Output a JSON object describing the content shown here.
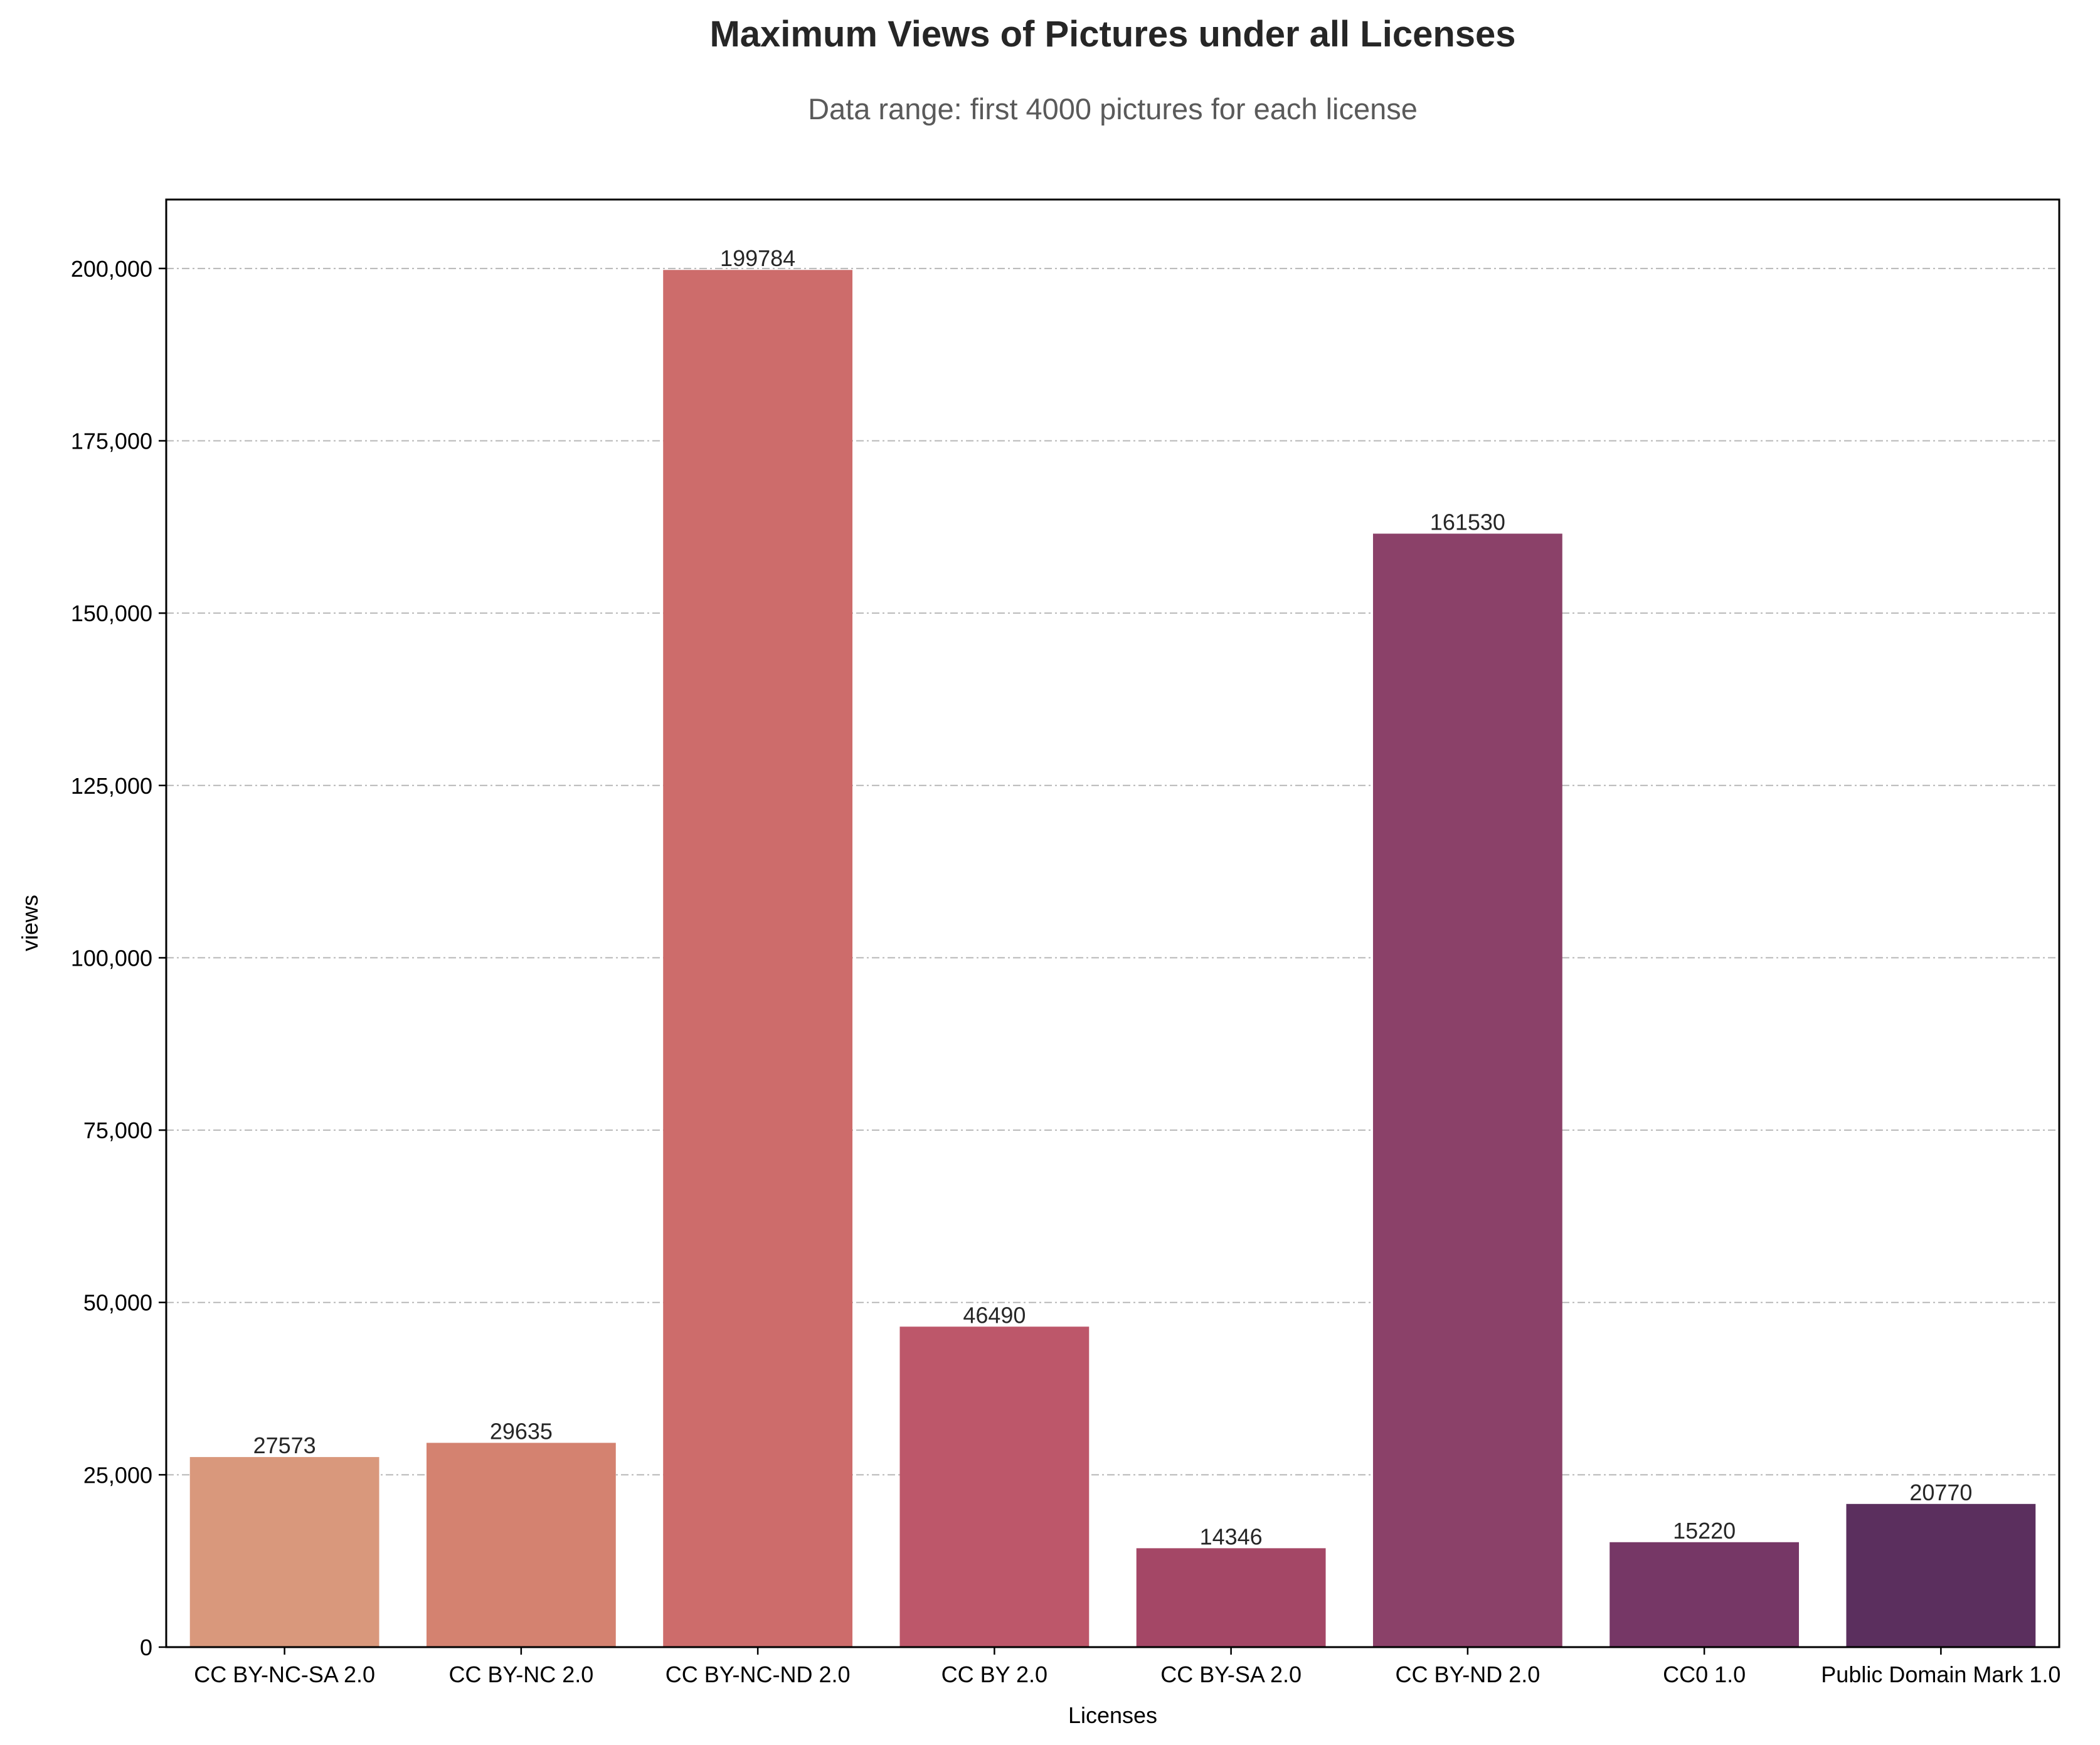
{
  "chart_data": {
    "type": "bar",
    "title": "Maximum Views of Pictures under all Licenses",
    "subtitle": "Data range: first 4000 pictures for each license",
    "xlabel": "Licenses",
    "ylabel": "views",
    "categories": [
      "CC BY-NC-SA 2.0",
      "CC BY-NC 2.0",
      "CC BY-NC-ND 2.0",
      "CC BY 2.0",
      "CC BY-SA 2.0",
      "CC BY-ND 2.0",
      "CC0 1.0",
      "Public Domain Mark 1.0"
    ],
    "values": [
      27573,
      29635,
      199784,
      46490,
      14346,
      161530,
      15220,
      20770
    ],
    "data_labels": [
      "27573",
      "29635",
      "199784",
      "46490",
      "14346",
      "161530",
      "15220",
      "20770"
    ],
    "colors": [
      "#d9987c",
      "#d48270",
      "#cd6c6b",
      "#bd576a",
      "#a44766",
      "#8b4169",
      "#763766",
      "#5b2f5e"
    ],
    "ylim": [
      0,
      210000
    ],
    "yticks": [
      0,
      25000,
      50000,
      75000,
      100000,
      125000,
      150000,
      175000,
      200000
    ],
    "ytick_labels": [
      "0",
      "25,000",
      "50,000",
      "75,000",
      "100,000",
      "125,000",
      "150,000",
      "175,000",
      "200,000"
    ],
    "grid": "y-dashdot",
    "legend": "none"
  }
}
